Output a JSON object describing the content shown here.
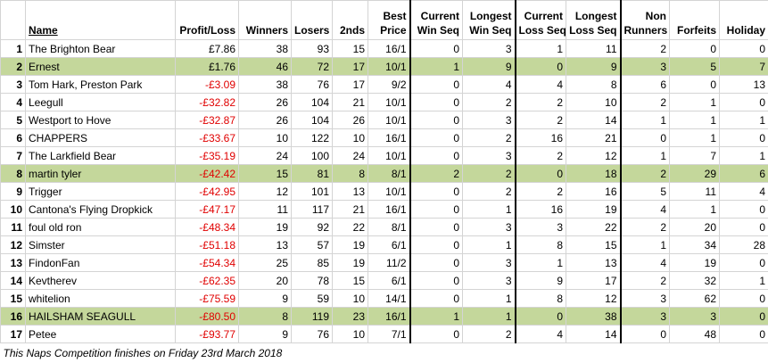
{
  "table": {
    "header": [
      [
        "Name"
      ],
      [
        "Profit/Loss"
      ],
      [
        "Winners"
      ],
      [
        "Losers"
      ],
      [
        "2nds"
      ],
      [
        "Best",
        "Price"
      ],
      [
        "Current",
        "Win Seq"
      ],
      [
        "Longest",
        "Win Seq"
      ],
      [
        "Current",
        "Loss Seq"
      ],
      [
        "Longest",
        "Loss Seq"
      ],
      [
        "Non",
        "Runners"
      ],
      [
        "Forfeits"
      ],
      [
        "Holiday"
      ]
    ],
    "rows": [
      {
        "cells": [
          1,
          "The Brighton Bear",
          "£7.86",
          38,
          93,
          15,
          "16/1",
          0,
          3,
          1,
          11,
          2,
          0,
          0
        ]
      },
      {
        "cells": [
          2,
          "Ernest",
          "£1.76",
          46,
          72,
          17,
          "10/1",
          1,
          9,
          0,
          9,
          3,
          5,
          7
        ],
        "highlight": true
      },
      {
        "cells": [
          3,
          "Tom Hark, Preston Park",
          "-£3.09",
          38,
          76,
          17,
          "9/2",
          0,
          4,
          4,
          8,
          6,
          0,
          13
        ]
      },
      {
        "cells": [
          4,
          "Leegull",
          "-£32.82",
          26,
          104,
          21,
          "10/1",
          0,
          2,
          2,
          10,
          2,
          1,
          0
        ]
      },
      {
        "cells": [
          5,
          "Westport to Hove",
          "-£32.87",
          26,
          104,
          26,
          "10/1",
          0,
          3,
          2,
          14,
          1,
          1,
          1
        ]
      },
      {
        "cells": [
          6,
          "CHAPPERS",
          "-£33.67",
          10,
          122,
          10,
          "16/1",
          0,
          2,
          16,
          21,
          0,
          1,
          0
        ]
      },
      {
        "cells": [
          7,
          "The Larkfield Bear",
          "-£35.19",
          24,
          100,
          24,
          "10/1",
          0,
          3,
          2,
          12,
          1,
          7,
          1
        ]
      },
      {
        "cells": [
          8,
          "martin tyler",
          "-£42.42",
          15,
          81,
          8,
          "8/1",
          2,
          2,
          0,
          18,
          2,
          29,
          6
        ],
        "highlight": true
      },
      {
        "cells": [
          9,
          "Trigger",
          "-£42.95",
          12,
          101,
          13,
          "10/1",
          0,
          2,
          2,
          16,
          5,
          11,
          4
        ]
      },
      {
        "cells": [
          10,
          "Cantona's Flying Dropkick",
          "-£47.17",
          11,
          117,
          21,
          "16/1",
          0,
          1,
          16,
          19,
          4,
          1,
          0
        ]
      },
      {
        "cells": [
          11,
          "foul old ron",
          "-£48.34",
          19,
          92,
          22,
          "8/1",
          0,
          3,
          3,
          22,
          2,
          20,
          0
        ]
      },
      {
        "cells": [
          12,
          "Simster",
          "-£51.18",
          13,
          57,
          19,
          "6/1",
          0,
          1,
          8,
          15,
          1,
          34,
          28
        ]
      },
      {
        "cells": [
          13,
          "FindonFan",
          "-£54.34",
          25,
          85,
          19,
          "11/2",
          0,
          3,
          1,
          13,
          4,
          19,
          0
        ]
      },
      {
        "cells": [
          14,
          "Kevtherev",
          "-£62.35",
          20,
          78,
          15,
          "6/1",
          0,
          3,
          9,
          17,
          2,
          32,
          1
        ]
      },
      {
        "cells": [
          15,
          "whitelion",
          "-£75.59",
          9,
          59,
          10,
          "14/1",
          0,
          1,
          8,
          12,
          3,
          62,
          0
        ]
      },
      {
        "cells": [
          16,
          "HAILSHAM SEAGULL",
          "-£80.50",
          8,
          119,
          23,
          "16/1",
          1,
          1,
          0,
          38,
          3,
          3,
          0
        ],
        "highlight": true
      },
      {
        "cells": [
          17,
          "Petee",
          "-£93.77",
          9,
          76,
          10,
          "7/1",
          0,
          2,
          4,
          14,
          0,
          48,
          0
        ]
      }
    ],
    "footer": "This Naps Competition finishes on Friday 23rd March 2018"
  }
}
